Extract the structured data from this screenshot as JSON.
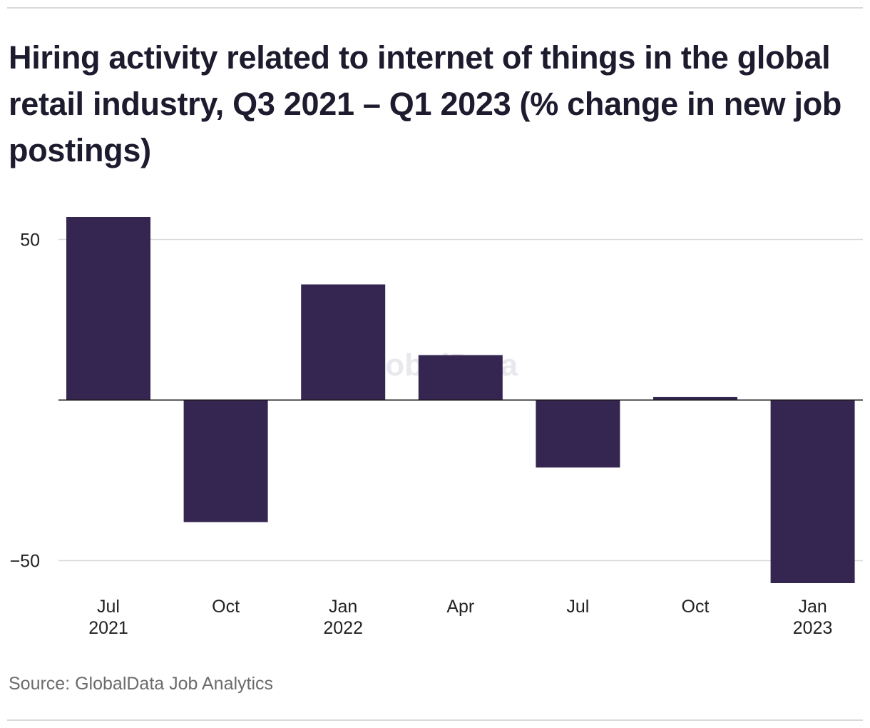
{
  "title": "Hiring activity related to internet of things in the global retail industry, Q3 2021 – Q1 2023 (% change in new job postings)",
  "source": "Source: GlobalData Job Analytics",
  "watermark": "GlobalData",
  "colors": {
    "bar": "#352551",
    "grid": "#d9d9d9",
    "zero_line": "#1a1a1a",
    "text": "#1d1b2e"
  },
  "chart_data": {
    "type": "bar",
    "categories": [
      "Jul 2021",
      "Oct 2021",
      "Jan 2022",
      "Apr 2022",
      "Jul 2022",
      "Oct 2022",
      "Jan 2023"
    ],
    "x_tick_labels": [
      [
        "Jul",
        "2021"
      ],
      [
        "Oct",
        ""
      ],
      [
        "Jan",
        "2022"
      ],
      [
        "Apr",
        ""
      ],
      [
        "Jul",
        ""
      ],
      [
        "Oct",
        ""
      ],
      [
        "Jan",
        "2023"
      ]
    ],
    "values": [
      57,
      -38,
      36,
      14,
      -21,
      1,
      -57
    ],
    "ylim": [
      -57,
      57
    ],
    "yticks": [
      50,
      -50
    ],
    "ytick_labels": [
      "50",
      "−50"
    ],
    "grid": true,
    "legend": false,
    "title": "Hiring activity related to internet of things in the global retail industry, Q3 2021 – Q1 2023 (% change in new job postings)",
    "xlabel": "",
    "ylabel": ""
  }
}
